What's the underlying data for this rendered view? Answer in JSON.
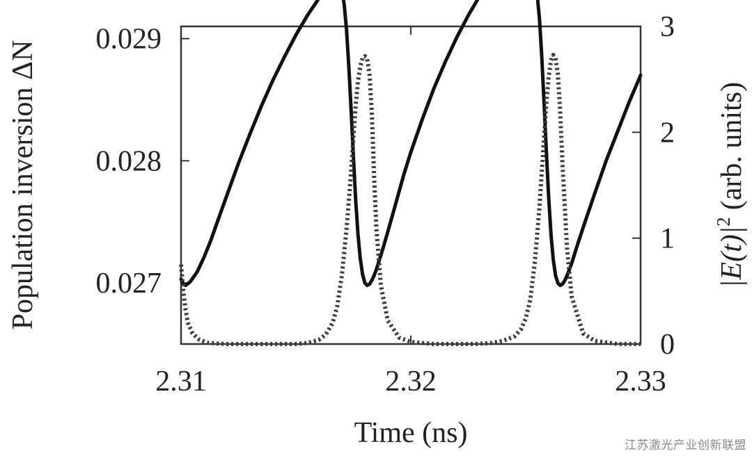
{
  "watermark": "江苏激光产业创新联盟",
  "chart_data": {
    "type": "line",
    "title": "",
    "xlabel": "Time (ns)",
    "ylabel_left": "Population inversion  ΔN",
    "ylabel_right_math": "|E(t)|",
    "ylabel_right_sup": "2",
    "ylabel_right_units": "(arb. units)",
    "xlim": [
      2.31,
      2.33
    ],
    "ylim_left": [
      0.0265,
      0.0291
    ],
    "ylim_right": [
      0,
      3
    ],
    "xticks": [
      "2.31",
      "2.32",
      "2.33"
    ],
    "yticks_left": [
      "0.027",
      "0.028",
      "0.029"
    ],
    "yticks_right": [
      "0",
      "1",
      "2",
      "3"
    ],
    "grid": false,
    "colors": {
      "inversion": "#111111",
      "intensity": "#3a3a3a"
    },
    "series": [
      {
        "axis": "left",
        "style": "solid",
        "x": [
          2.31,
          2.3101,
          2.3102,
          2.3104,
          2.3107,
          2.311,
          2.3113,
          2.3116,
          2.312,
          2.3125,
          2.313,
          2.3135,
          2.314,
          2.3145,
          2.315,
          2.3155,
          2.316,
          2.3163,
          2.3166,
          2.3168,
          2.3169,
          2.317,
          2.3171,
          2.3172,
          2.3173,
          2.3174,
          2.3175,
          2.3176,
          2.3177,
          2.3178,
          2.3179,
          2.318,
          2.3181,
          2.3182,
          2.3183,
          2.3184,
          2.3185,
          2.3186,
          2.3188,
          2.319,
          2.3193,
          2.3197,
          2.32,
          2.3205,
          2.321,
          2.3215,
          2.322,
          2.3225,
          2.323,
          2.3235,
          2.324,
          2.3245,
          2.3248,
          2.3251,
          2.3253,
          2.3254,
          2.3255,
          2.3256,
          2.3257,
          2.3258,
          2.3259,
          2.326,
          2.3261,
          2.3262,
          2.3263,
          2.3264,
          2.3265,
          2.3266,
          2.3267,
          2.3268,
          2.3269,
          2.327,
          2.3271,
          2.3273,
          2.3276,
          2.328,
          2.3285,
          2.329,
          2.3295,
          2.33
        ],
        "y": [
          0.02703,
          0.02699,
          0.02698,
          0.02701,
          0.02709,
          0.02721,
          0.02735,
          0.02751,
          0.02772,
          0.02798,
          0.02822,
          0.02845,
          0.02866,
          0.02885,
          0.02903,
          0.02919,
          0.02933,
          0.02941,
          0.02947,
          0.02948,
          0.02946,
          0.0294,
          0.02928,
          0.02908,
          0.02878,
          0.02842,
          0.02804,
          0.02768,
          0.0274,
          0.0272,
          0.02707,
          0.027,
          0.02698,
          0.02699,
          0.02702,
          0.02706,
          0.02711,
          0.02717,
          0.02729,
          0.02742,
          0.02762,
          0.02789,
          0.02807,
          0.02834,
          0.02859,
          0.02881,
          0.02901,
          0.02919,
          0.02935,
          0.02947,
          0.02949,
          0.02956,
          0.02959,
          0.02958,
          0.02954,
          0.02948,
          0.02936,
          0.02916,
          0.02885,
          0.02847,
          0.02807,
          0.0277,
          0.0274,
          0.02719,
          0.02706,
          0.027,
          0.02698,
          0.02699,
          0.02702,
          0.02706,
          0.02711,
          0.02716,
          0.02722,
          0.02734,
          0.02751,
          0.02773,
          0.028,
          0.02824,
          0.02848,
          0.0287
        ]
      },
      {
        "axis": "right",
        "style": "dotted",
        "x": [
          2.31,
          2.3101,
          2.3102,
          2.3103,
          2.3105,
          2.3108,
          2.3112,
          2.312,
          2.313,
          2.314,
          2.315,
          2.3155,
          2.316,
          2.3163,
          2.3166,
          2.3168,
          2.317,
          2.3172,
          2.3174,
          2.3175,
          2.3176,
          2.3177,
          2.3178,
          2.3179,
          2.318,
          2.3181,
          2.3182,
          2.3183,
          2.3184,
          2.3185,
          2.3187,
          2.319,
          2.3195,
          2.32,
          2.321,
          2.322,
          2.3228,
          2.3235,
          2.324,
          2.3245,
          2.3248,
          2.325,
          2.3252,
          2.3254,
          2.3256,
          2.3257,
          2.3258,
          2.3259,
          2.326,
          2.3261,
          2.3262,
          2.3263,
          2.3264,
          2.3265,
          2.3266,
          2.3268,
          2.327,
          2.3275,
          2.328,
          2.329,
          2.33
        ],
        "y": [
          0.75,
          0.5,
          0.32,
          0.2,
          0.1,
          0.04,
          0.01,
          0.0,
          0.0,
          0.0,
          0.0,
          0.01,
          0.04,
          0.09,
          0.2,
          0.36,
          0.65,
          1.08,
          1.62,
          1.95,
          2.25,
          2.48,
          2.62,
          2.7,
          2.72,
          2.7,
          2.55,
          2.2,
          1.6,
          1.1,
          0.55,
          0.22,
          0.06,
          0.02,
          0.0,
          0.0,
          0.0,
          0.01,
          0.03,
          0.07,
          0.14,
          0.24,
          0.42,
          0.78,
          1.3,
          1.62,
          1.95,
          2.28,
          2.52,
          2.68,
          2.73,
          2.7,
          2.55,
          2.2,
          1.7,
          0.9,
          0.45,
          0.1,
          0.03,
          0.0,
          0.0
        ]
      }
    ]
  }
}
